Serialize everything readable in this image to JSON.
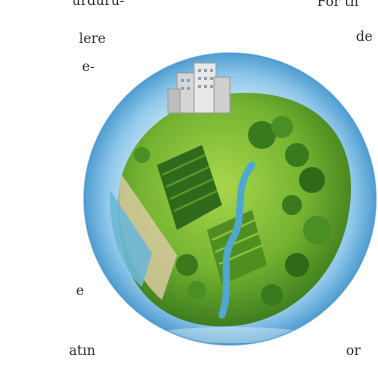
{
  "text_fragments": {
    "left_line_1": "urduru-",
    "left_line_2": "lere",
    "left_line_3": "e-",
    "left_line_4": "e",
    "left_line_5": "atın",
    "right_line_1": "For th",
    "right_line_2": "de",
    "right_line_3": "or"
  },
  "image": {
    "subject": "globe-planet-illustration",
    "colors": {
      "sky_center": "#ffffff",
      "sky_edge": "#5aa6d6",
      "grass": "#7dbb34",
      "dark_grass": "#3f7d1e",
      "water": "#3fa5c9",
      "building": "#d9d9d9"
    }
  }
}
